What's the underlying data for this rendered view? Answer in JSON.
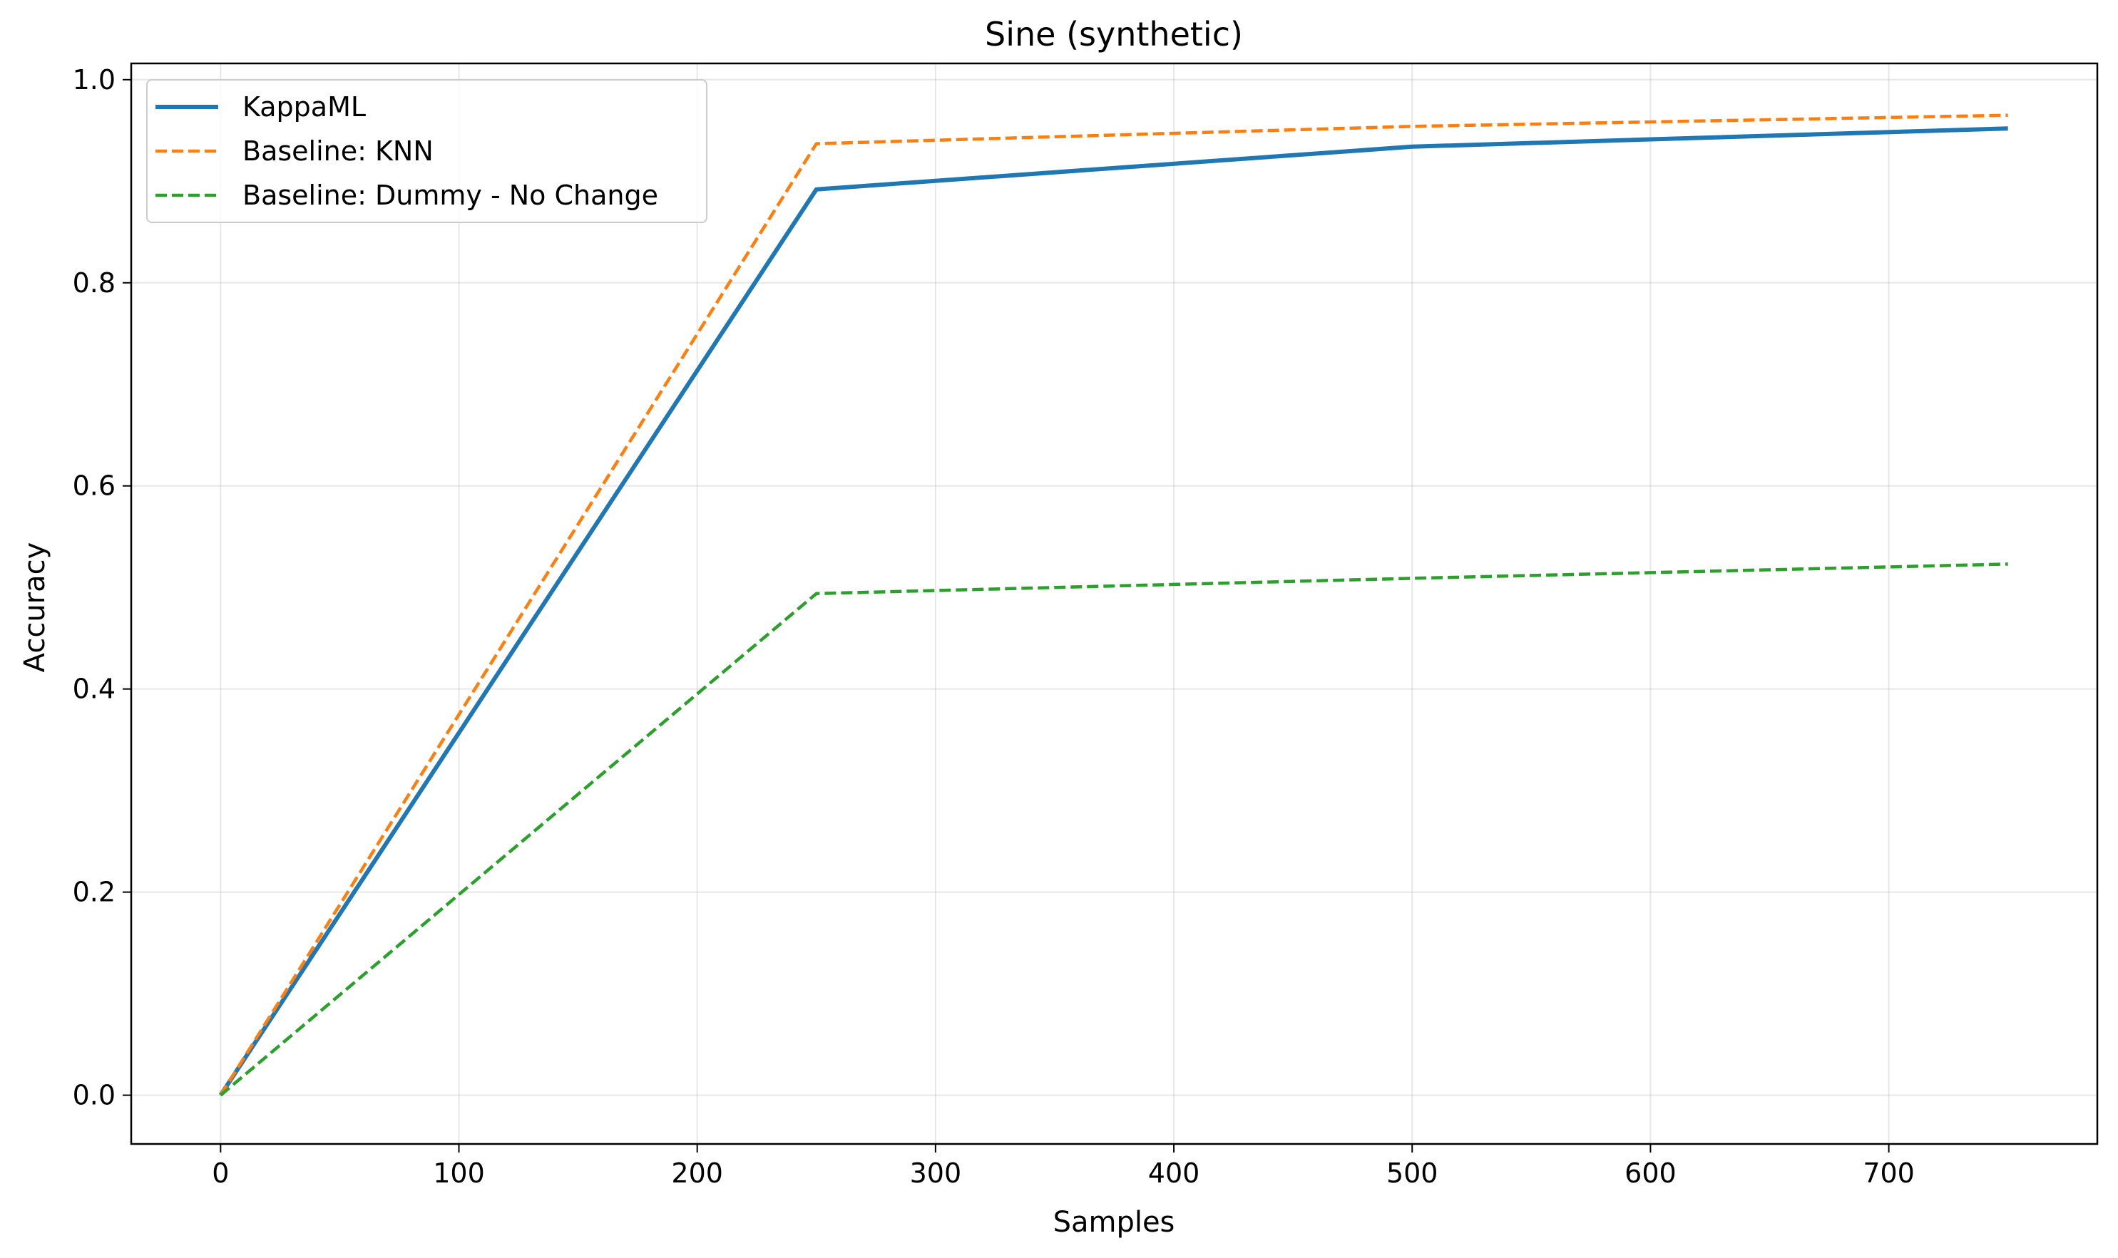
{
  "chart_data": {
    "type": "line",
    "title": "Sine (synthetic)",
    "xlabel": "Samples",
    "ylabel": "Accuracy",
    "xlim": [
      -37.5,
      787.5
    ],
    "ylim": [
      -0.048,
      1.016
    ],
    "xticks": [
      0,
      100,
      200,
      300,
      400,
      500,
      600,
      700
    ],
    "yticks": [
      0.0,
      0.2,
      0.4,
      0.6,
      0.8,
      1.0
    ],
    "xtick_labels": [
      "0",
      "100",
      "200",
      "300",
      "400",
      "500",
      "600",
      "700"
    ],
    "ytick_labels": [
      "0.0",
      "0.2",
      "0.4",
      "0.6",
      "0.8",
      "1.0"
    ],
    "grid": true,
    "legend_position": "top-left",
    "x": [
      0,
      250,
      500,
      750
    ],
    "series": [
      {
        "name": "KappaML",
        "values": [
          0.0,
          0.892,
          0.934,
          0.952
        ],
        "color": "#1f77b4",
        "style": "solid"
      },
      {
        "name": "Baseline: KNN",
        "values": [
          0.0,
          0.937,
          0.954,
          0.965
        ],
        "color": "#ff7f0e",
        "style": "dashed"
      },
      {
        "name": "Baseline: Dummy - No Change",
        "values": [
          0.0,
          0.494,
          0.509,
          0.523
        ],
        "color": "#2ca02c",
        "style": "dashed"
      }
    ]
  }
}
